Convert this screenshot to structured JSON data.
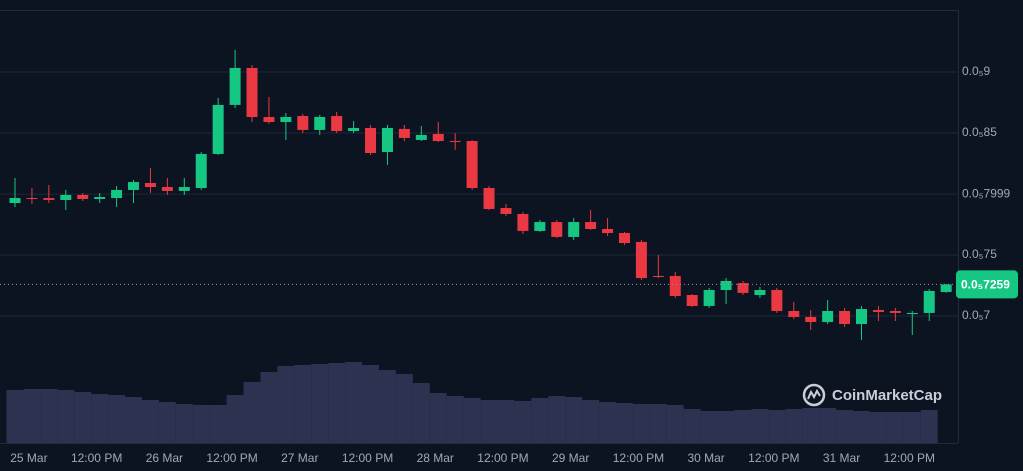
{
  "chart_data": {
    "type": "candlestick",
    "watermark": "CoinMarketCap",
    "categories": [
      null,
      "25 Mar",
      null,
      null,
      null,
      "12:00 PM",
      null,
      null,
      null,
      "26 Mar",
      null,
      null,
      null,
      "12:00 PM",
      null,
      null,
      null,
      "27 Mar",
      null,
      null,
      null,
      "12:00 PM",
      null,
      null,
      null,
      "28 Mar",
      null,
      null,
      null,
      "12:00 PM",
      null,
      null,
      null,
      "29 Mar",
      null,
      null,
      null,
      "12:00 PM",
      null,
      null,
      null,
      "30 Mar",
      null,
      null,
      null,
      "12:00 PM",
      null,
      null,
      null,
      "31 Mar",
      null,
      null,
      null,
      "12:00 PM",
      null,
      null
    ],
    "open": [
      7.926e-06,
      7.967e-06,
      7.967e-06,
      7.951e-06,
      7.992e-06,
      7.959e-06,
      7.967e-06,
      8.033e-06,
      8.09e-06,
      8.057e-06,
      8.025e-06,
      8.049e-06,
      8.328e-06,
      8.73e-06,
      9.033e-06,
      8.631e-06,
      8.59e-06,
      8.639e-06,
      8.525e-06,
      8.639e-06,
      8.516e-06,
      8.541e-06,
      8.344e-06,
      8.533e-06,
      8.443e-06,
      8.492e-06,
      8.434e-06,
      8.434e-06,
      8.049e-06,
      7.885e-06,
      7.836e-06,
      7.697e-06,
      7.77e-06,
      7.648e-06,
      7.77e-06,
      7.713e-06,
      7.68e-06,
      7.607e-06,
      7.328e-06,
      7.328e-06,
      7.172e-06,
      7.082e-06,
      7.213e-06,
      7.27e-06,
      7.172e-06,
      7.213e-06,
      7.041e-06,
      6.992e-06,
      6.951e-06,
      7.041e-06,
      6.934e-06,
      7.049e-06,
      7.041e-06,
      7.016e-06,
      7.025e-06,
      7.197e-06
    ],
    "high": [
      8.131e-06,
      8.049e-06,
      8.074e-06,
      8.033e-06,
      8.008e-06,
      8.008e-06,
      8.066e-06,
      8.115e-06,
      8.213e-06,
      8.131e-06,
      8.131e-06,
      8.344e-06,
      8.787e-06,
      9.18e-06,
      9.057e-06,
      8.795e-06,
      8.664e-06,
      8.656e-06,
      8.648e-06,
      8.672e-06,
      8.598e-06,
      8.566e-06,
      8.566e-06,
      8.566e-06,
      8.557e-06,
      8.59e-06,
      8.5e-06,
      8.443e-06,
      8.066e-06,
      7.918e-06,
      7.852e-06,
      7.787e-06,
      7.787e-06,
      7.803e-06,
      7.869e-06,
      7.803e-06,
      7.689e-06,
      7.623e-06,
      7.5e-06,
      7.361e-06,
      7.18e-06,
      7.23e-06,
      7.311e-06,
      7.287e-06,
      7.238e-06,
      7.23e-06,
      7.115e-06,
      7.049e-06,
      7.131e-06,
      7.066e-06,
      7.082e-06,
      7.082e-06,
      7.066e-06,
      7.041e-06,
      7.221e-06,
      7.262e-06
    ],
    "low": [
      7.893e-06,
      7.918e-06,
      7.926e-06,
      7.869e-06,
      7.943e-06,
      7.926e-06,
      7.893e-06,
      7.926e-06,
      8.008e-06,
      7.992e-06,
      7.992e-06,
      8.033e-06,
      8.32e-06,
      8.705e-06,
      8.59e-06,
      8.574e-06,
      8.443e-06,
      8.5e-06,
      8.484e-06,
      8.5e-06,
      8.5e-06,
      8.32e-06,
      8.238e-06,
      8.434e-06,
      8.434e-06,
      8.426e-06,
      8.361e-06,
      8.033e-06,
      7.869e-06,
      7.82e-06,
      7.672e-06,
      7.689e-06,
      7.639e-06,
      7.623e-06,
      7.705e-06,
      7.656e-06,
      7.582e-06,
      7.295e-06,
      7.311e-06,
      7.148e-06,
      7.074e-06,
      7.066e-06,
      7.098e-06,
      7.172e-06,
      7.148e-06,
      7.025e-06,
      6.975e-06,
      6.885e-06,
      6.934e-06,
      6.91e-06,
      6.803e-06,
      6.959e-06,
      6.959e-06,
      6.844e-06,
      6.959e-06,
      7.189e-06
    ],
    "close": [
      7.967e-06,
      7.959e-06,
      7.951e-06,
      7.992e-06,
      7.959e-06,
      7.975e-06,
      8.033e-06,
      8.098e-06,
      8.057e-06,
      8.025e-06,
      8.057e-06,
      8.328e-06,
      8.73e-06,
      9.033e-06,
      8.631e-06,
      8.59e-06,
      8.631e-06,
      8.525e-06,
      8.631e-06,
      8.516e-06,
      8.541e-06,
      8.336e-06,
      8.541e-06,
      8.459e-06,
      8.484e-06,
      8.434e-06,
      8.426e-06,
      8.049e-06,
      7.877e-06,
      7.836e-06,
      7.697e-06,
      7.77e-06,
      7.648e-06,
      7.77e-06,
      7.713e-06,
      7.68e-06,
      7.598e-06,
      7.311e-06,
      7.32e-06,
      7.164e-06,
      7.082e-06,
      7.213e-06,
      7.287e-06,
      7.189e-06,
      7.213e-06,
      7.041e-06,
      6.992e-06,
      6.951e-06,
      7.041e-06,
      6.934e-06,
      7.057e-06,
      7.033e-06,
      7.025e-06,
      7.025e-06,
      7.205e-06,
      7.259e-06
    ],
    "volume": [
      53,
      54,
      54,
      53,
      51,
      49,
      48,
      46,
      43,
      41,
      39,
      38,
      38,
      48,
      61,
      71,
      77,
      78,
      79,
      80,
      81,
      78,
      73,
      69,
      60,
      50,
      47,
      45,
      43,
      43,
      42,
      45,
      47,
      46,
      43,
      41,
      40,
      39,
      39,
      38,
      34,
      32,
      32,
      33,
      34,
      33,
      34,
      35,
      35,
      33,
      32,
      31,
      31,
      31,
      33,
      null
    ],
    "up_color": "#16c784",
    "down_color": "#ea3943",
    "volume_color": "#2b3350",
    "ylim": [
      5.959e-06,
      9.508e-06
    ],
    "yticks": [
      {
        "value": 9e-06,
        "label": "0.0₅9"
      },
      {
        "value": 8.5e-06,
        "label": "0.0₅85"
      },
      {
        "value": 7.999e-06,
        "label": "0.0₅7999"
      },
      {
        "value": 7.5e-06,
        "label": "0.0₅75"
      },
      {
        "value": 7e-06,
        "label": "0.0₅7"
      }
    ],
    "last_price": {
      "value": 7.259e-06,
      "label": "0.0₅7259"
    },
    "grid": true
  }
}
